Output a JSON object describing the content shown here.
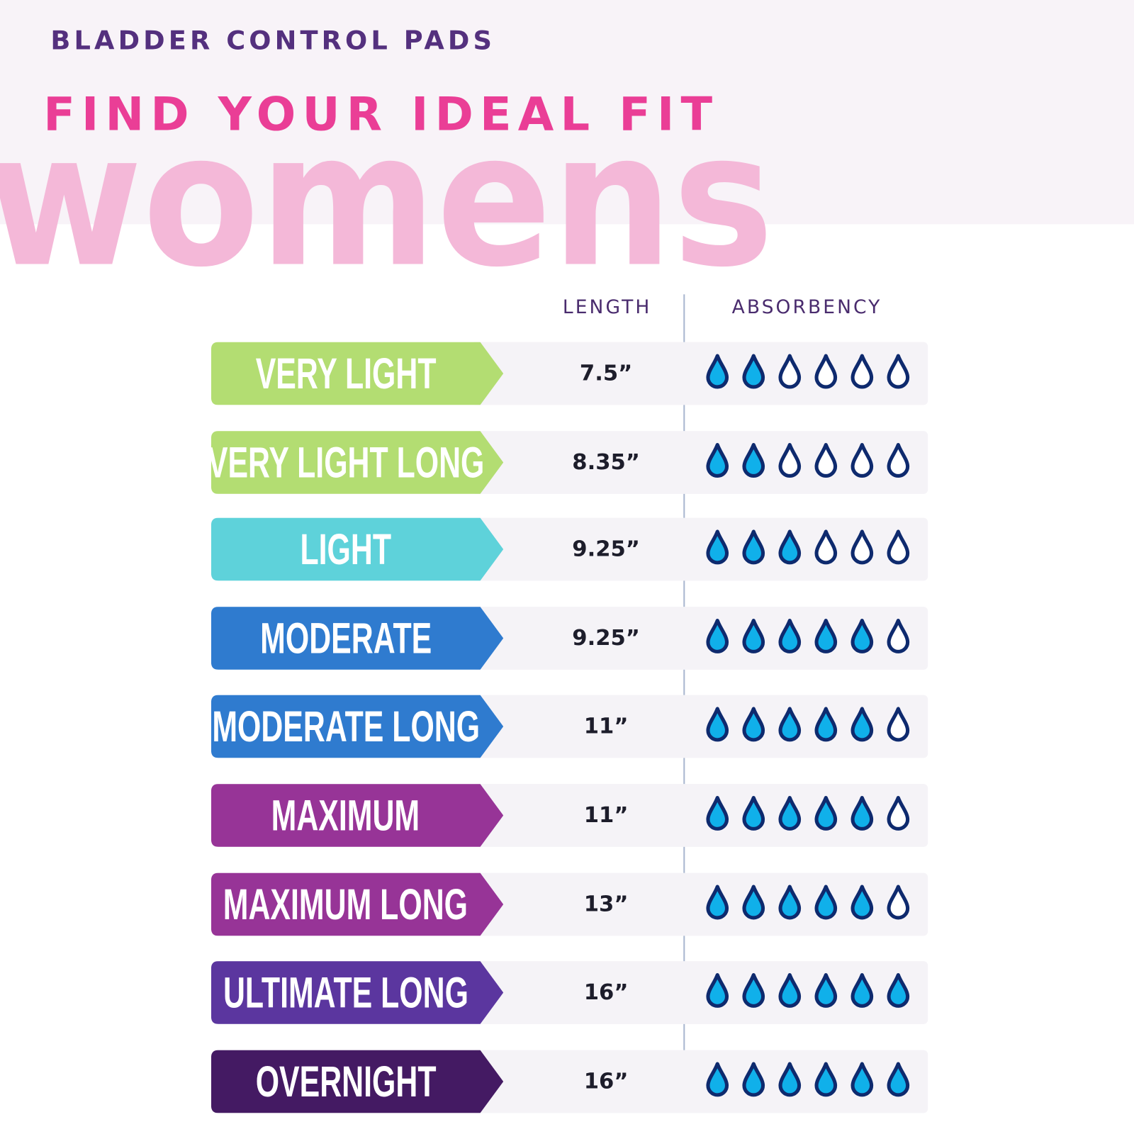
{
  "header": {
    "eyebrow": "BLADDER CONTROL PADS",
    "title": "FIND YOUR IDEAL FIT",
    "watermark": "womens"
  },
  "table": {
    "col_length": "LENGTH",
    "col_absorbency": "ABSORBENCY",
    "max_drops": 6,
    "rows": [
      {
        "label": "VERY LIGHT",
        "length": "7.5”",
        "drops": 2,
        "color": "#b3dd72"
      },
      {
        "label": "VERY LIGHT LONG",
        "length": "8.35”",
        "drops": 2,
        "color": "#b3dd72"
      },
      {
        "label": "LIGHT",
        "length": "9.25”",
        "drops": 3,
        "color": "#5ed2da"
      },
      {
        "label": "MODERATE",
        "length": "9.25”",
        "drops": 5,
        "color": "#2f7bcf"
      },
      {
        "label": "MODERATE LONG",
        "length": "11”",
        "drops": 5,
        "color": "#2f7bcf"
      },
      {
        "label": "MAXIMUM",
        "length": "11”",
        "drops": 5,
        "color": "#973497"
      },
      {
        "label": "MAXIMUM LONG",
        "length": "13”",
        "drops": 5,
        "color": "#973497"
      },
      {
        "label": "ULTIMATE LONG",
        "length": "16”",
        "drops": 6,
        "color": "#5b369f"
      },
      {
        "label": "OVERNIGHT",
        "length": "16”",
        "drops": 6,
        "color": "#441a63"
      }
    ]
  },
  "colors": {
    "band": "#f8f3f8",
    "eyebrow": "#54307e",
    "title": "#ea3e96",
    "watermark": "#f4b8d8",
    "drop_fill": "#10b0ea",
    "drop_outline": "#0e2a6e"
  }
}
